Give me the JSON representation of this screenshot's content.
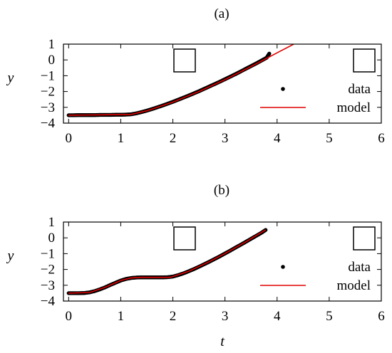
{
  "chart_data": [
    {
      "type": "scatter",
      "title": "(a)",
      "xlabel": "",
      "ylabel": "y",
      "xlim": [
        -0.1,
        6
      ],
      "ylim": [
        -4,
        1
      ],
      "xticks": [
        0,
        1,
        2,
        3,
        4,
        5,
        6
      ],
      "yticks": [
        1,
        0,
        -1,
        -2,
        -3,
        -4
      ],
      "legend": {
        "placement": "bottom-right"
      },
      "series": [
        {
          "name": "data",
          "kind": "points",
          "color": "#000000",
          "x": [
            0,
            0.1,
            0.2,
            0.3,
            0.4,
            0.5,
            0.6,
            0.7,
            0.8,
            0.9,
            1.0,
            1.1,
            1.2,
            1.3,
            1.4,
            1.5,
            1.6,
            1.7,
            1.8,
            1.9,
            2.0,
            2.1,
            2.2,
            2.3,
            2.4,
            2.5,
            2.6,
            2.7,
            2.8,
            2.9,
            3.0,
            3.1,
            3.2,
            3.3,
            3.4,
            3.5,
            3.6,
            3.7,
            3.8,
            3.85
          ],
          "y": [
            -3.5,
            -3.5,
            -3.49,
            -3.49,
            -3.49,
            -3.49,
            -3.48,
            -3.48,
            -3.48,
            -3.47,
            -3.47,
            -3.46,
            -3.44,
            -3.38,
            -3.3,
            -3.21,
            -3.11,
            -3.0,
            -2.89,
            -2.77,
            -2.65,
            -2.52,
            -2.39,
            -2.26,
            -2.12,
            -1.98,
            -1.83,
            -1.68,
            -1.53,
            -1.38,
            -1.22,
            -1.06,
            -0.9,
            -0.73,
            -0.56,
            -0.39,
            -0.22,
            -0.04,
            0.14,
            0.4
          ]
        },
        {
          "name": "model",
          "kind": "line",
          "color": "#e00000",
          "x": [
            0,
            1.2,
            1.5,
            2.0,
            2.5,
            3.0,
            3.5,
            4.0,
            4.32
          ],
          "y": [
            -3.5,
            -3.45,
            -3.22,
            -2.67,
            -2.0,
            -1.25,
            -0.42,
            0.45,
            1.0
          ]
        }
      ]
    },
    {
      "type": "scatter",
      "title": "(b)",
      "xlabel": "t",
      "ylabel": "y",
      "xlim": [
        -0.1,
        6
      ],
      "ylim": [
        -4,
        1
      ],
      "xticks": [
        0,
        1,
        2,
        3,
        4,
        5,
        6
      ],
      "yticks": [
        1,
        0,
        -1,
        -2,
        -3,
        -4
      ],
      "legend": {
        "placement": "bottom-right"
      },
      "series": [
        {
          "name": "data",
          "kind": "points",
          "color": "#000000",
          "x": [
            0,
            0.1,
            0.2,
            0.3,
            0.4,
            0.5,
            0.6,
            0.7,
            0.8,
            0.9,
            1.0,
            1.1,
            1.2,
            1.3,
            1.4,
            1.5,
            1.6,
            1.7,
            1.8,
            1.9,
            2.0,
            2.1,
            2.2,
            2.3,
            2.4,
            2.5,
            2.6,
            2.7,
            2.8,
            2.9,
            3.0,
            3.1,
            3.2,
            3.3,
            3.4,
            3.5,
            3.6,
            3.7,
            3.78
          ],
          "y": [
            -3.5,
            -3.5,
            -3.5,
            -3.49,
            -3.45,
            -3.37,
            -3.26,
            -3.13,
            -2.98,
            -2.84,
            -2.7,
            -2.6,
            -2.54,
            -2.51,
            -2.5,
            -2.5,
            -2.5,
            -2.5,
            -2.5,
            -2.49,
            -2.45,
            -2.36,
            -2.25,
            -2.12,
            -1.98,
            -1.83,
            -1.67,
            -1.51,
            -1.34,
            -1.17,
            -0.99,
            -0.81,
            -0.62,
            -0.44,
            -0.25,
            -0.06,
            0.13,
            0.32,
            0.5
          ]
        },
        {
          "name": "model",
          "kind": "line",
          "color": "#e00000",
          "x": [
            0,
            0.4,
            0.7,
            1.0,
            1.2,
            1.4,
            1.95,
            2.3,
            2.7,
            3.0,
            3.4,
            3.78
          ],
          "y": [
            -3.5,
            -3.46,
            -3.13,
            -2.7,
            -2.54,
            -2.5,
            -2.5,
            -2.12,
            -1.51,
            -0.99,
            -0.25,
            0.5
          ]
        }
      ]
    }
  ]
}
